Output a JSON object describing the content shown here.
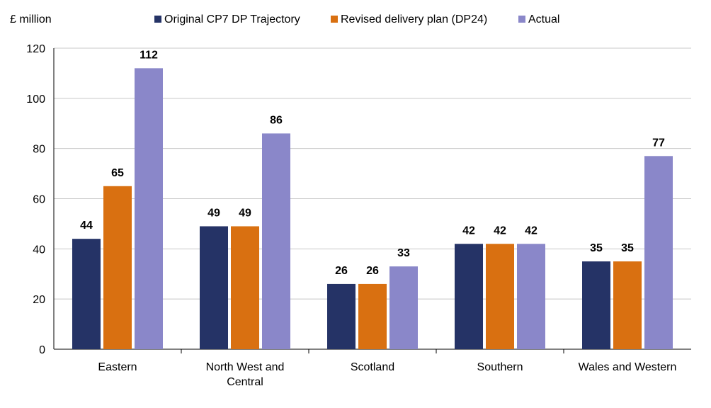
{
  "chart_data": {
    "type": "bar",
    "y_unit_label": "£ million",
    "categories": [
      [
        "Eastern"
      ],
      [
        "North West and",
        "Central"
      ],
      [
        "Scotland"
      ],
      [
        "Southern"
      ],
      [
        "Wales and Western"
      ]
    ],
    "series": [
      {
        "name": "Original CP7 DP Trajectory",
        "color": "#253366",
        "values": [
          44,
          49,
          26,
          42,
          35
        ],
        "labels": [
          "44",
          "49",
          "26",
          "42",
          "35"
        ]
      },
      {
        "name": "Revised delivery plan (DP24)",
        "color": "#d97011",
        "values": [
          65,
          49,
          26,
          42,
          35
        ],
        "labels": [
          "65",
          "49",
          "26",
          "42",
          "35"
        ]
      },
      {
        "name": "Actual",
        "color": "#8a87c9",
        "values": [
          112,
          86,
          33,
          42,
          77
        ],
        "labels": [
          "112",
          "86",
          "33",
          "42",
          "77"
        ]
      }
    ],
    "ylim": [
      0,
      120
    ],
    "yticks": [
      0,
      20,
      40,
      60,
      80,
      100,
      120
    ],
    "grid": true,
    "legend_position": "top"
  }
}
